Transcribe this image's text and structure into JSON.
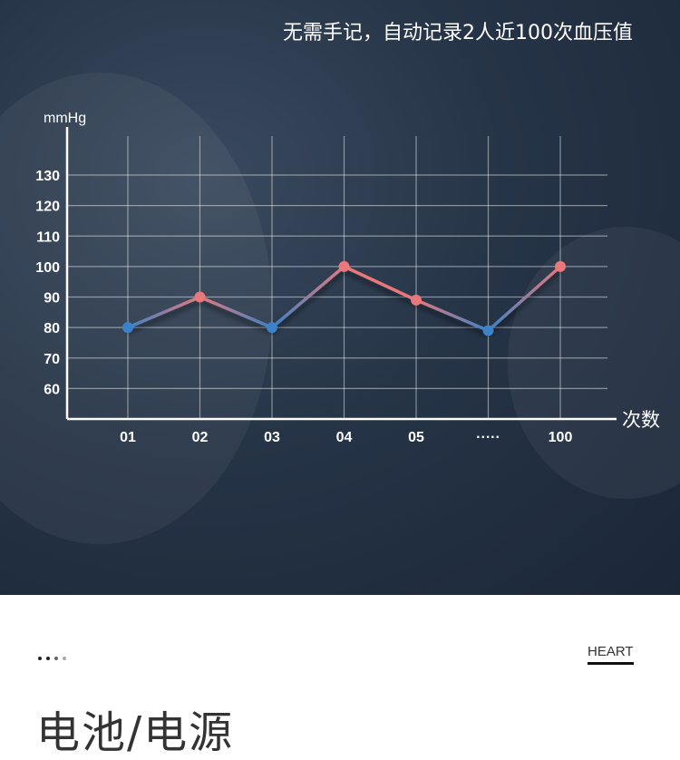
{
  "headline": "无需手记，自动记录2人近100次血压值",
  "chart_data": {
    "type": "line",
    "ylabel": "mmHg",
    "xlabel": "次数",
    "categories": [
      "01",
      "02",
      "03",
      "04",
      "05",
      "·····",
      "100"
    ],
    "values": [
      80,
      90,
      80,
      100,
      89,
      79,
      100
    ],
    "yticks": [
      60,
      70,
      80,
      90,
      100,
      110,
      120,
      130
    ],
    "ylim": [
      50,
      140
    ],
    "grid": true,
    "colors": {
      "high": "#e8787a",
      "low": "#3b82c8"
    }
  },
  "footer": {
    "tag": "HEART",
    "title": "电池/电源"
  }
}
